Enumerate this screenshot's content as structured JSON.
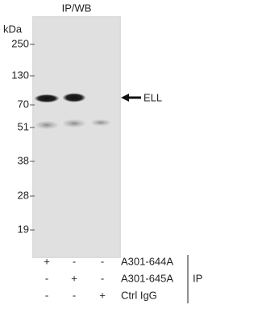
{
  "figure": {
    "title": "IP/WB",
    "unit": "kDa",
    "markers": [
      "250",
      "130",
      "70",
      "51",
      "38",
      "28",
      "19"
    ],
    "band_label": "ELL",
    "rows": [
      {
        "label": "A301-644A",
        "lanes": [
          "+",
          "-",
          "-"
        ]
      },
      {
        "label": "A301-645A",
        "lanes": [
          "-",
          "+",
          "-"
        ]
      },
      {
        "label": "Ctrl IgG",
        "lanes": [
          "-",
          "-",
          "+"
        ]
      }
    ],
    "group_label": "IP"
  }
}
